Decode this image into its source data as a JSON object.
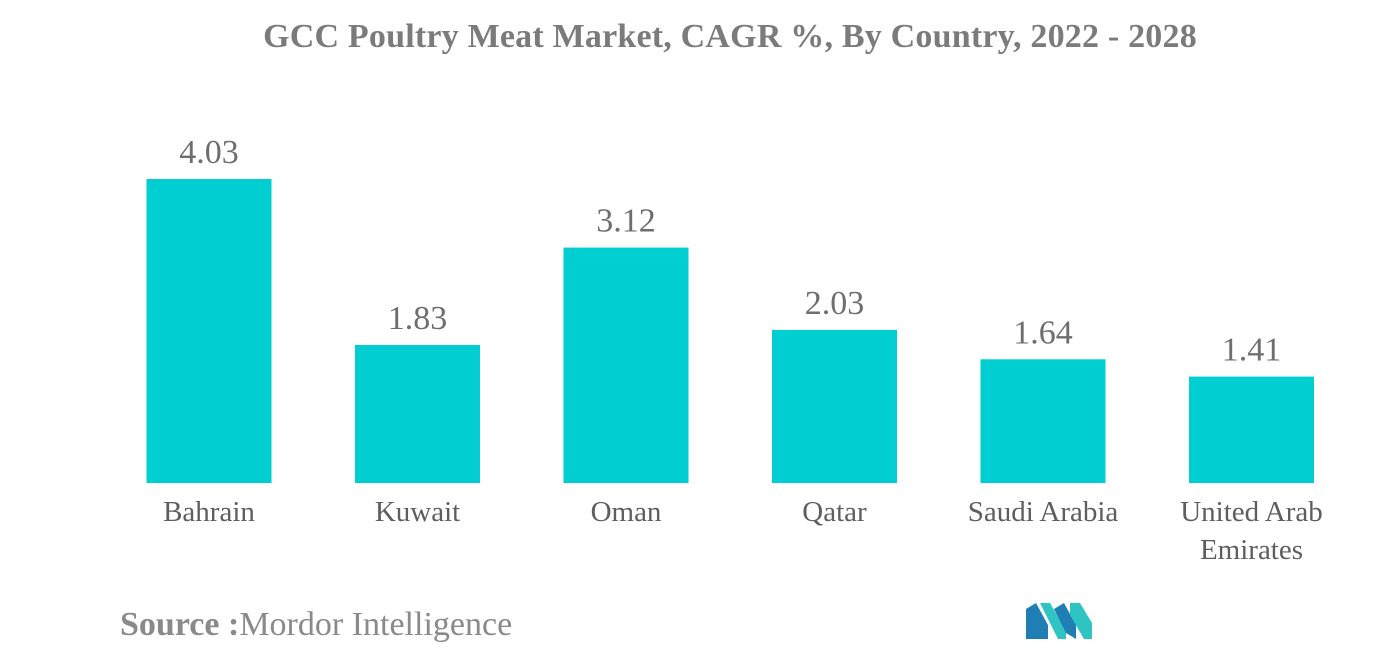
{
  "chart_data": {
    "type": "bar",
    "title": "GCC Poultry Meat Market, CAGR %, By Country, 2022 - 2028",
    "categories": [
      "Bahrain",
      "Kuwait",
      "Oman",
      "Qatar",
      "Saudi Arabia",
      "United Arab Emirates"
    ],
    "category_lines": [
      [
        "Bahrain"
      ],
      [
        "Kuwait"
      ],
      [
        "Oman"
      ],
      [
        "Qatar"
      ],
      [
        "Saudi Arabia"
      ],
      [
        "United Arab",
        "Emirates"
      ]
    ],
    "values": [
      4.03,
      1.83,
      3.12,
      2.03,
      1.64,
      1.41
    ],
    "value_labels": [
      "4.03",
      "1.83",
      "3.12",
      "2.03",
      "1.64",
      "1.41"
    ],
    "xlabel": "",
    "ylabel": "",
    "ylim": [
      0,
      4.03
    ],
    "grid": false,
    "bar_color": "#00ced1"
  },
  "source": {
    "label": "Source :",
    "text": "Mordor Intelligence"
  },
  "logo": {
    "icon": "mordor-intelligence-logo-icon",
    "colors": [
      "#1f7fb5",
      "#2ec4c4"
    ]
  }
}
